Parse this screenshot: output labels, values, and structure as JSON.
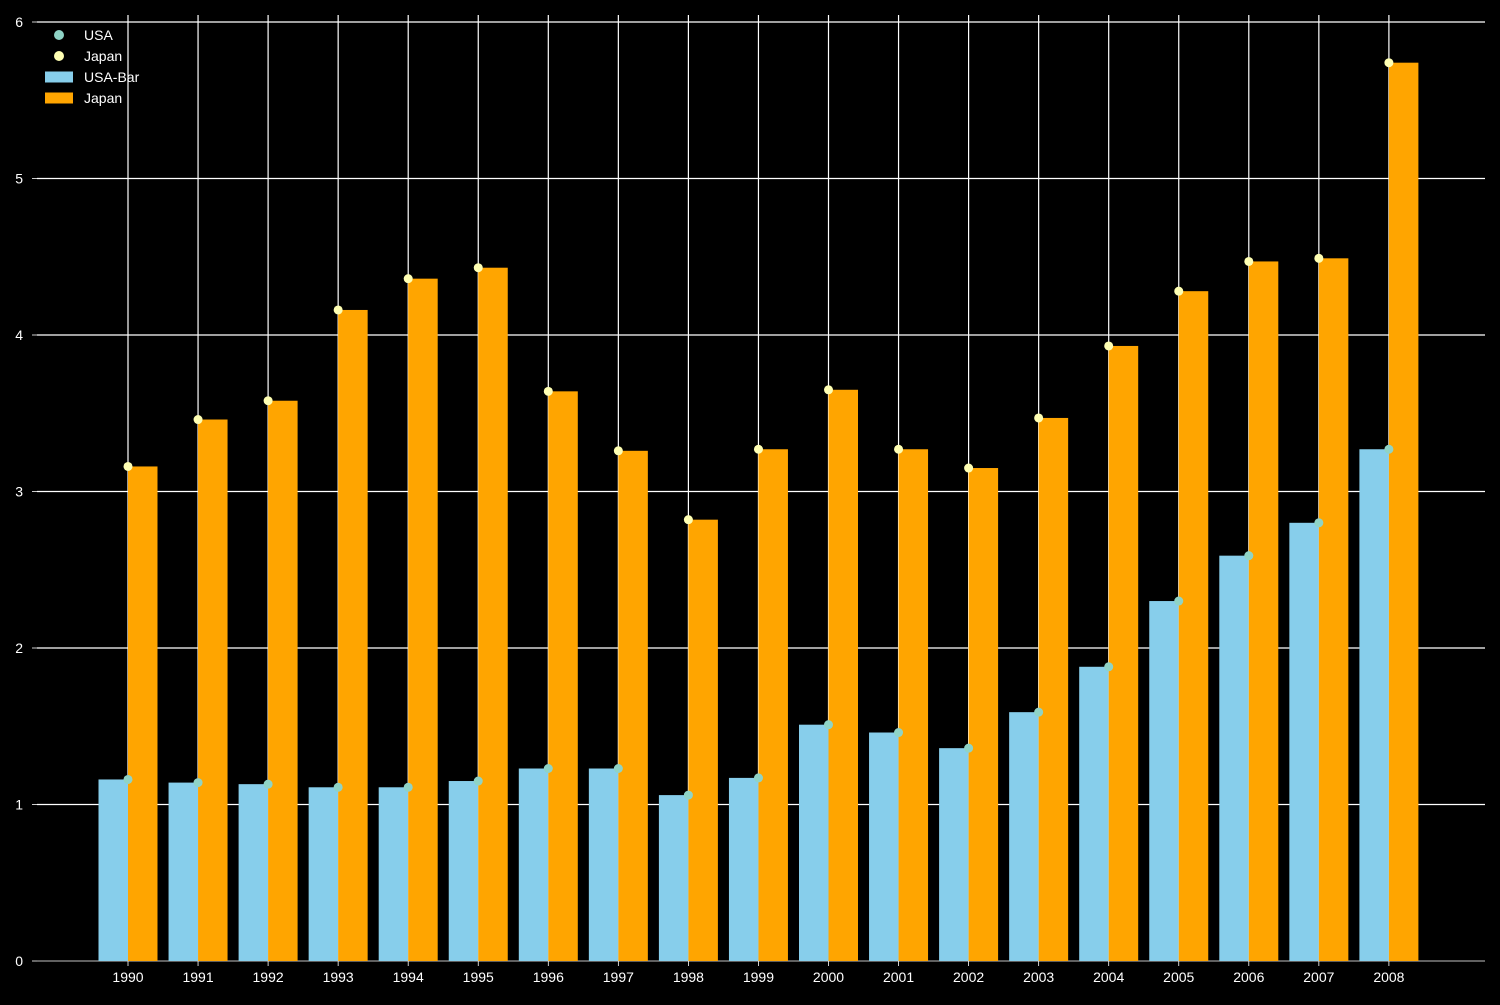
{
  "chart_data": {
    "type": "bar",
    "title": "",
    "xlabel": "",
    "ylabel": "",
    "categories": [
      "1990",
      "1991",
      "1992",
      "1993",
      "1994",
      "1995",
      "1996",
      "1997",
      "1998",
      "1999",
      "2000",
      "2001",
      "2002",
      "2003",
      "2004",
      "2005",
      "2006",
      "2007",
      "2008"
    ],
    "series": [
      {
        "name": "USA-Bar",
        "kind": "bar",
        "color": "#87CEEB",
        "values": [
          1.16,
          1.14,
          1.13,
          1.11,
          1.11,
          1.15,
          1.23,
          1.23,
          1.06,
          1.17,
          1.51,
          1.46,
          1.36,
          1.59,
          1.88,
          2.3,
          2.59,
          2.8,
          3.27
        ]
      },
      {
        "name": "Japan",
        "kind": "bar",
        "color": "#FFA500",
        "values": [
          3.16,
          3.46,
          3.58,
          4.16,
          4.36,
          4.43,
          3.64,
          3.26,
          2.82,
          3.27,
          3.65,
          3.27,
          3.15,
          3.47,
          3.93,
          4.28,
          4.47,
          4.49,
          5.74
        ]
      },
      {
        "name": "USA",
        "kind": "scatter",
        "color": "#8FD3C6",
        "values": [
          1.16,
          1.14,
          1.13,
          1.11,
          1.11,
          1.15,
          1.23,
          1.23,
          1.06,
          1.17,
          1.51,
          1.46,
          1.36,
          1.59,
          1.88,
          2.3,
          2.59,
          2.8,
          3.27
        ]
      },
      {
        "name": "Japan",
        "kind": "scatter",
        "color": "#FFFFB3",
        "values": [
          3.16,
          3.46,
          3.58,
          4.16,
          4.36,
          4.43,
          3.64,
          3.26,
          2.82,
          3.27,
          3.65,
          3.27,
          3.15,
          3.47,
          3.93,
          4.28,
          4.47,
          4.49,
          5.74
        ]
      }
    ],
    "ylim": [
      0,
      6
    ],
    "yticks": [
      "0",
      "1",
      "2",
      "3",
      "4",
      "5",
      "6"
    ],
    "grid": true,
    "legend_position": "top-left",
    "legend": [
      {
        "label": "USA",
        "marker": "circle",
        "color": "#8FD3C6"
      },
      {
        "label": "Japan",
        "marker": "circle",
        "color": "#FFFFB3"
      },
      {
        "label": "USA-Bar",
        "marker": "rect",
        "color": "#87CEEB"
      },
      {
        "label": "Japan",
        "marker": "rect",
        "color": "#FFA500"
      }
    ]
  }
}
